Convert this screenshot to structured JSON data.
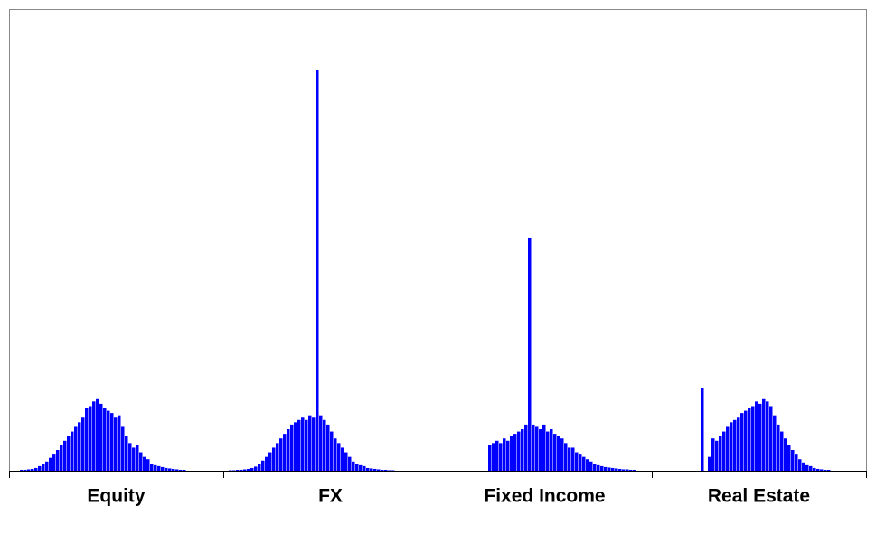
{
  "chart_data": {
    "type": "bar",
    "categories": [
      "Equity",
      "FX",
      "Fixed Income",
      "Real Estate"
    ],
    "color": "#0000ff",
    "ylim": [
      0,
      100
    ],
    "distributions": [
      [
        0.2,
        0.2,
        0.3,
        0.4,
        0.6,
        1,
        1.5,
        2,
        2.8,
        3.5,
        4.5,
        5.5,
        6.5,
        7.5,
        8.5,
        9.5,
        10.5,
        11.5,
        13.5,
        14,
        15,
        15.5,
        14.5,
        13.5,
        13,
        12.5,
        11.5,
        12,
        9.5,
        7.5,
        6,
        5,
        5.5,
        4,
        3,
        2.5,
        1.5,
        1.2,
        1,
        0.8,
        0.6,
        0.5,
        0.4,
        0.3,
        0.2,
        0.2
      ],
      [
        0.1,
        0.1,
        0.2,
        0.2,
        0.3,
        0.4,
        0.6,
        0.9,
        1.5,
        2.2,
        3,
        4,
        5,
        6,
        7,
        8,
        9,
        10,
        10.5,
        11,
        11.5,
        11,
        12,
        11.5,
        86.7,
        12,
        11,
        10,
        8.5,
        7,
        6,
        5,
        4,
        3,
        2,
        1.5,
        1.2,
        1,
        0.6,
        0.5,
        0.4,
        0.3,
        0.2,
        0.2,
        0.1,
        0.1
      ],
      [
        5.5,
        6,
        6.5,
        6,
        7,
        6.5,
        7.5,
        8,
        8.5,
        9,
        10,
        50.5,
        10,
        9.5,
        9,
        10,
        8.5,
        9,
        8,
        7.5,
        7,
        6,
        5,
        5,
        4,
        3.5,
        3,
        2.5,
        2,
        1.5,
        1.2,
        1,
        0.8,
        0.7,
        0.6,
        0.5,
        0.4,
        0.3,
        0.3,
        0.2,
        0.2
      ],
      [
        18,
        0,
        3,
        7,
        6.5,
        7.5,
        8.5,
        9.5,
        10.5,
        11,
        11.5,
        12.5,
        13,
        13.5,
        14,
        15,
        14.5,
        15.5,
        15,
        14,
        12,
        10,
        8.5,
        7,
        5.5,
        4.5,
        3.5,
        2.5,
        1.8,
        1.2,
        1,
        0.6,
        0.4,
        0.3,
        0.2,
        0.2
      ]
    ]
  }
}
